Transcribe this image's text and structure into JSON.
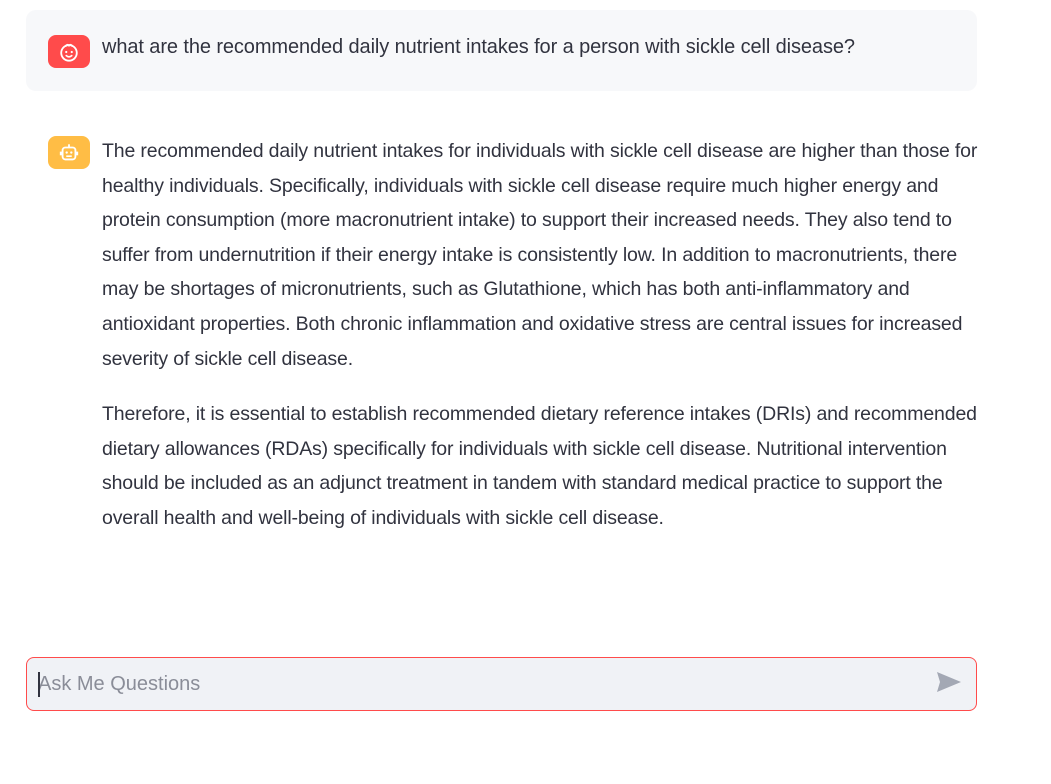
{
  "conversation": {
    "user_message": {
      "avatar_icon": "user-face-icon",
      "avatar_color": "#ff4b4b",
      "text": "what are the recommended daily nutrient intakes for a person with sickle cell disease?"
    },
    "assistant_message": {
      "avatar_icon": "robot-icon",
      "avatar_color": "#ffbd45",
      "paragraphs": [
        "The recommended daily nutrient intakes for individuals with sickle cell disease are higher than those for healthy individuals. Specifically, individuals with sickle cell disease require much higher energy and protein consumption (more macronutrient intake) to support their increased needs. They also tend to suffer from undernutrition if their energy intake is consistently low. In addition to macronutrients, there may be shortages of micronutrients, such as Glutathione, which has both anti-inflammatory and antioxidant properties. Both chronic inflammation and oxidative stress are central issues for increased severity of sickle cell disease.",
        "Therefore, it is essential to establish recommended dietary reference intakes (DRIs) and recommended dietary allowances (RDAs) specifically for individuals with sickle cell disease. Nutritional intervention should be included as an adjunct treatment in tandem with standard medical practice to support the overall health and well-being of individuals with sickle cell disease."
      ]
    }
  },
  "chat_input": {
    "placeholder": "Ask Me Questions",
    "value": "",
    "border_color": "#ff4b4b",
    "send_icon": "send-icon"
  }
}
